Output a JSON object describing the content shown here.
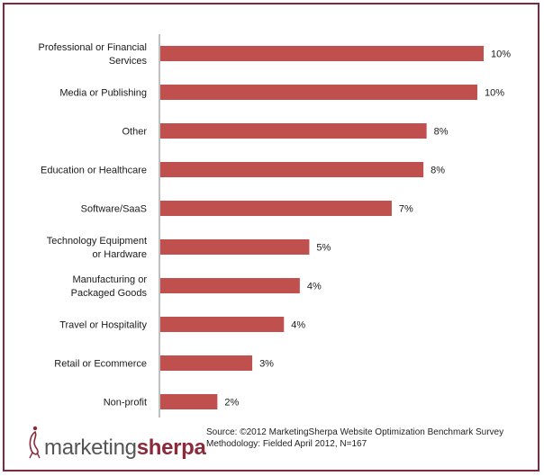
{
  "chart_data": {
    "type": "bar",
    "orientation": "horizontal",
    "categories": [
      [
        "Professional or Financial",
        "Services"
      ],
      [
        "Media or Publishing"
      ],
      [
        "Other"
      ],
      [
        "Education or Healthcare"
      ],
      [
        "Software/SaaS"
      ],
      [
        "Technology Equipment",
        "or Hardware"
      ],
      [
        "Manufacturing or",
        "Packaged Goods"
      ],
      [
        "Travel or Hospitality"
      ],
      [
        "Retail or Ecommerce"
      ],
      [
        "Non-profit"
      ]
    ],
    "values": [
      10.2,
      10.0,
      8.4,
      8.3,
      7.3,
      4.7,
      4.4,
      3.9,
      2.9,
      1.8
    ],
    "value_labels": [
      "10%",
      "10%",
      "8%",
      "8%",
      "7%",
      "5%",
      "4%",
      "4%",
      "3%",
      "2%"
    ],
    "xlim": [
      0,
      10.2
    ],
    "bar_color": "#c0504d",
    "grid": false,
    "legend": "none"
  },
  "brand": {
    "logo_part_a": "marketing",
    "logo_part_b": "sherpa",
    "brand_color": "#8a2b3c"
  },
  "source": {
    "line1": "Source: ©2012 MarketingSherpa Website Optimization Benchmark Survey",
    "line2": "Methodology: Fielded April 2012, N=167"
  }
}
